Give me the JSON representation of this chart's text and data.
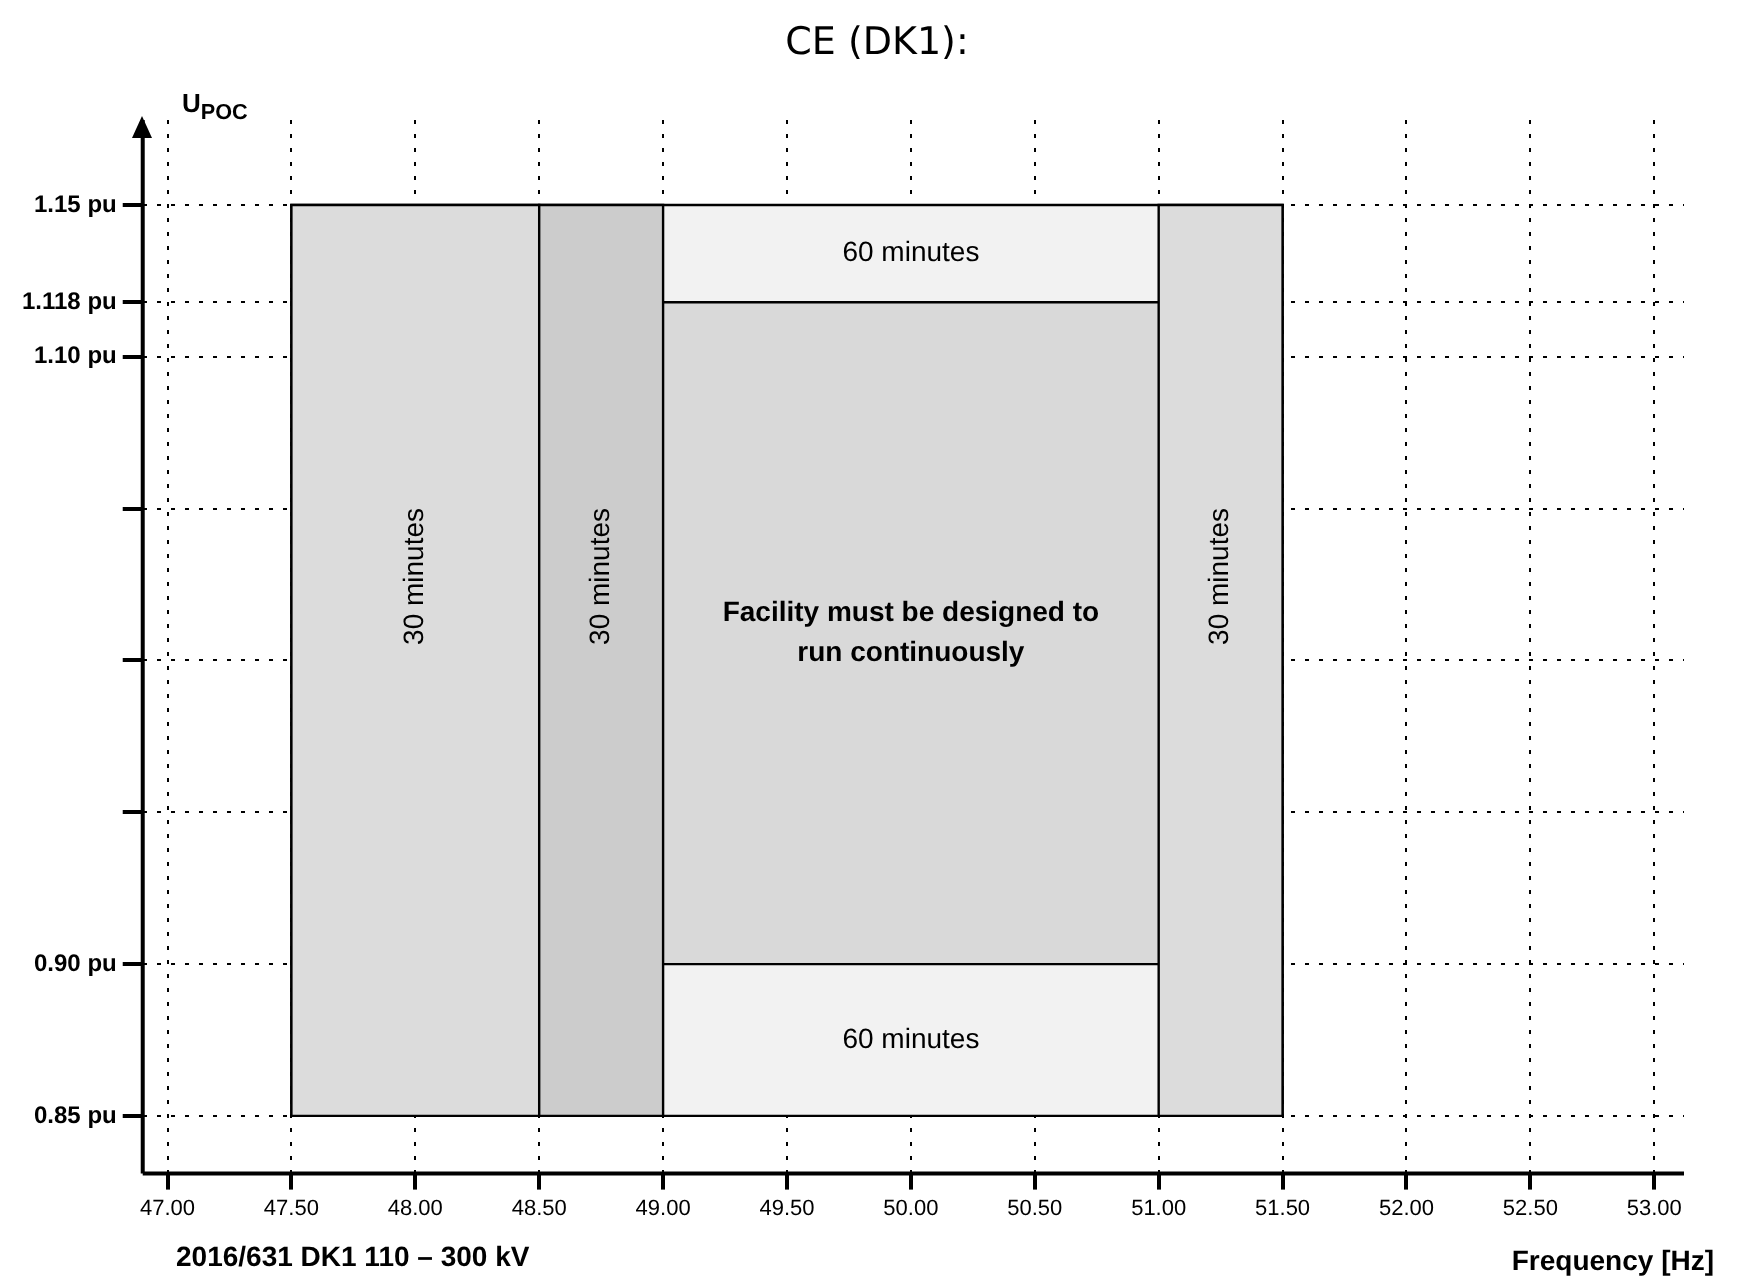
{
  "chart_data": {
    "type": "line",
    "title": "CE (DK1):",
    "xlabel": "Frequency [Hz]",
    "ylabel": "U$_{POC}$",
    "annotations": [
      "2016/631 DK1 110 – 300 kV"
    ],
    "xlim": [
      46.9,
      53.12
    ],
    "ylim": [
      0.831,
      1.178
    ],
    "xticks": [
      {
        "value": 47,
        "label": "47.00"
      },
      {
        "value": 47.5,
        "label": "47.50"
      },
      {
        "value": 48,
        "label": "48.00"
      },
      {
        "value": 48.5,
        "label": "48.50"
      },
      {
        "value": 49,
        "label": "49.00"
      },
      {
        "value": 49.5,
        "label": "49.50"
      },
      {
        "value": 50,
        "label": "50.00"
      },
      {
        "value": 50.5,
        "label": "50.50"
      },
      {
        "value": 51,
        "label": "51.00"
      },
      {
        "value": 51.5,
        "label": "51.50"
      },
      {
        "value": 52,
        "label": "52.00"
      },
      {
        "value": 52.5,
        "label": "52.50"
      },
      {
        "value": 53,
        "label": "53.00"
      }
    ],
    "yticks": [
      {
        "value": 0.85,
        "label": "0.85 pu"
      },
      {
        "value": 0.9,
        "label": "0.90 pu"
      },
      {
        "value": 0.95,
        "label": null
      },
      {
        "value": 1.0,
        "label": null
      },
      {
        "value": 1.05,
        "label": null
      },
      {
        "value": 1.1,
        "label": "1.10 pu"
      },
      {
        "value": 1.118,
        "label": "1.118 pu"
      },
      {
        "value": 1.15,
        "label": "1.15 pu"
      }
    ],
    "grid": true,
    "bands": [
      {
        "axis": "y",
        "from": 1.118,
        "to": 1.15,
        "label": "60 minutes",
        "color": "#f2f2f2"
      },
      {
        "axis": "y",
        "from": 0.9,
        "to": 1.118,
        "label": "Facility must be designed to run continuously",
        "color": "#d9d9d9"
      },
      {
        "axis": "y",
        "from": 0.85,
        "to": 0.9,
        "label": "60 minutes",
        "color": "#f2f2f2"
      },
      {
        "axis": "x",
        "from": 47.5,
        "to": 48.5,
        "label": "30 minutes",
        "color": "#dcdcdc"
      },
      {
        "axis": "x",
        "from": 48.5,
        "to": 49,
        "label": "30 minutes",
        "color": "#cccccc"
      },
      {
        "axis": "x",
        "from": 51,
        "to": 51.5,
        "label": "30 minutes",
        "color": "#dcdcdc"
      }
    ]
  }
}
